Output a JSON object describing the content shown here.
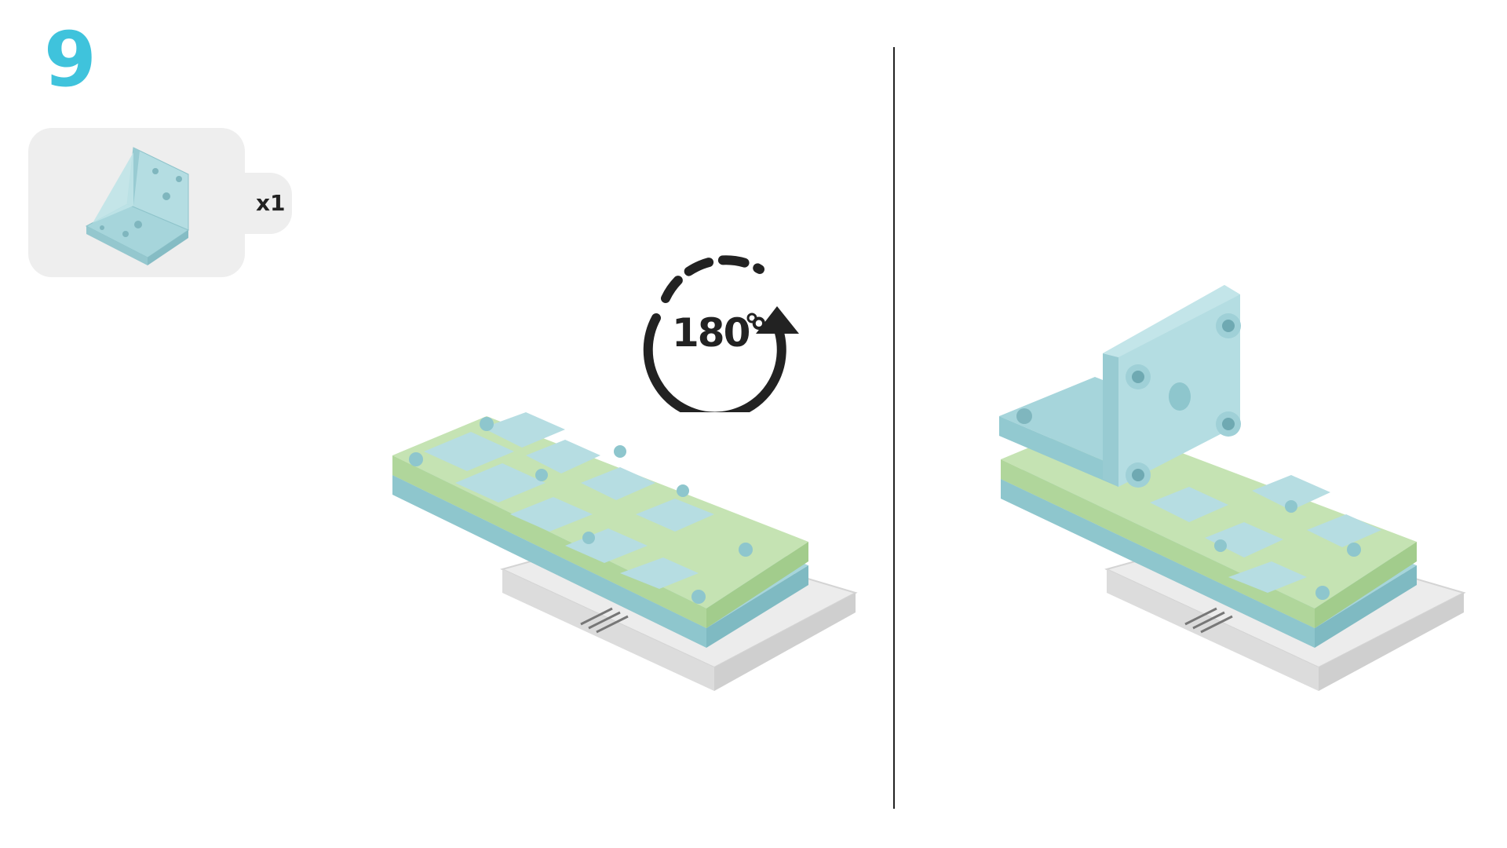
{
  "step": {
    "number": "9"
  },
  "parts": {
    "quantity": "x1",
    "part_icon": "l-bracket-icon"
  },
  "rotation": {
    "label": "180°",
    "icon": "rotate-clockwise-arrow-icon"
  },
  "colors": {
    "accent": "#3fc3dc",
    "part_blue": "#a6d5db",
    "part_green": "#c5e3b3",
    "panel_gray": "#eeeeee",
    "text_dark": "#222222"
  }
}
